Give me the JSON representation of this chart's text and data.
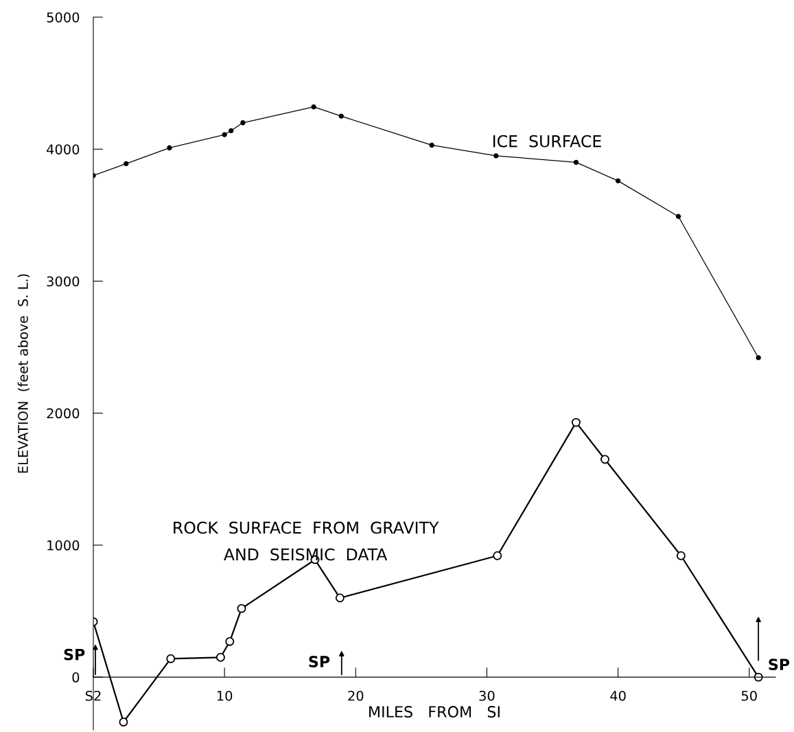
{
  "chart_data": {
    "type": "line",
    "xlabel": "MILES   FROM   SI",
    "ylabel": "ELEVATION  (feet above  S. L.)",
    "series": [
      {
        "name": "ICE  SURFACE",
        "color": "#000000",
        "marker": "circle",
        "x": [
          0,
          2.5,
          5.8,
          10.0,
          10.5,
          11.4,
          16.8,
          18.9,
          25.8,
          30.7,
          36.8,
          40.0,
          44.6,
          50.7
        ],
        "values": [
          3800,
          3890,
          4010,
          4110,
          4140,
          4200,
          4320,
          4250,
          4030,
          3950,
          3900,
          3760,
          3490,
          2420
        ]
      },
      {
        "name": "ROCK  SURFACE  FROM  GRAVITY\nAND  SEISMIC  DATA",
        "color": "#000000",
        "marker": "circle",
        "x": [
          0,
          2.3,
          5.9,
          9.7,
          10.4,
          11.3,
          16.9,
          18.8,
          30.8,
          36.8,
          39.0,
          44.8,
          50.7
        ],
        "values": [
          420,
          -340,
          140,
          150,
          270,
          520,
          890,
          600,
          920,
          1930,
          1650,
          920,
          0
        ]
      }
    ],
    "xlim": [
      0,
      52
    ],
    "ylim": [
      -400,
      5000
    ],
    "xticks": [
      {
        "value": 0,
        "label": "S2"
      },
      10,
      20,
      30,
      40,
      50
    ],
    "yticks": [
      0,
      1000,
      2000,
      3000,
      4000,
      5000
    ],
    "grid": false,
    "annotations": [
      "SP",
      "SP",
      "SP"
    ]
  }
}
